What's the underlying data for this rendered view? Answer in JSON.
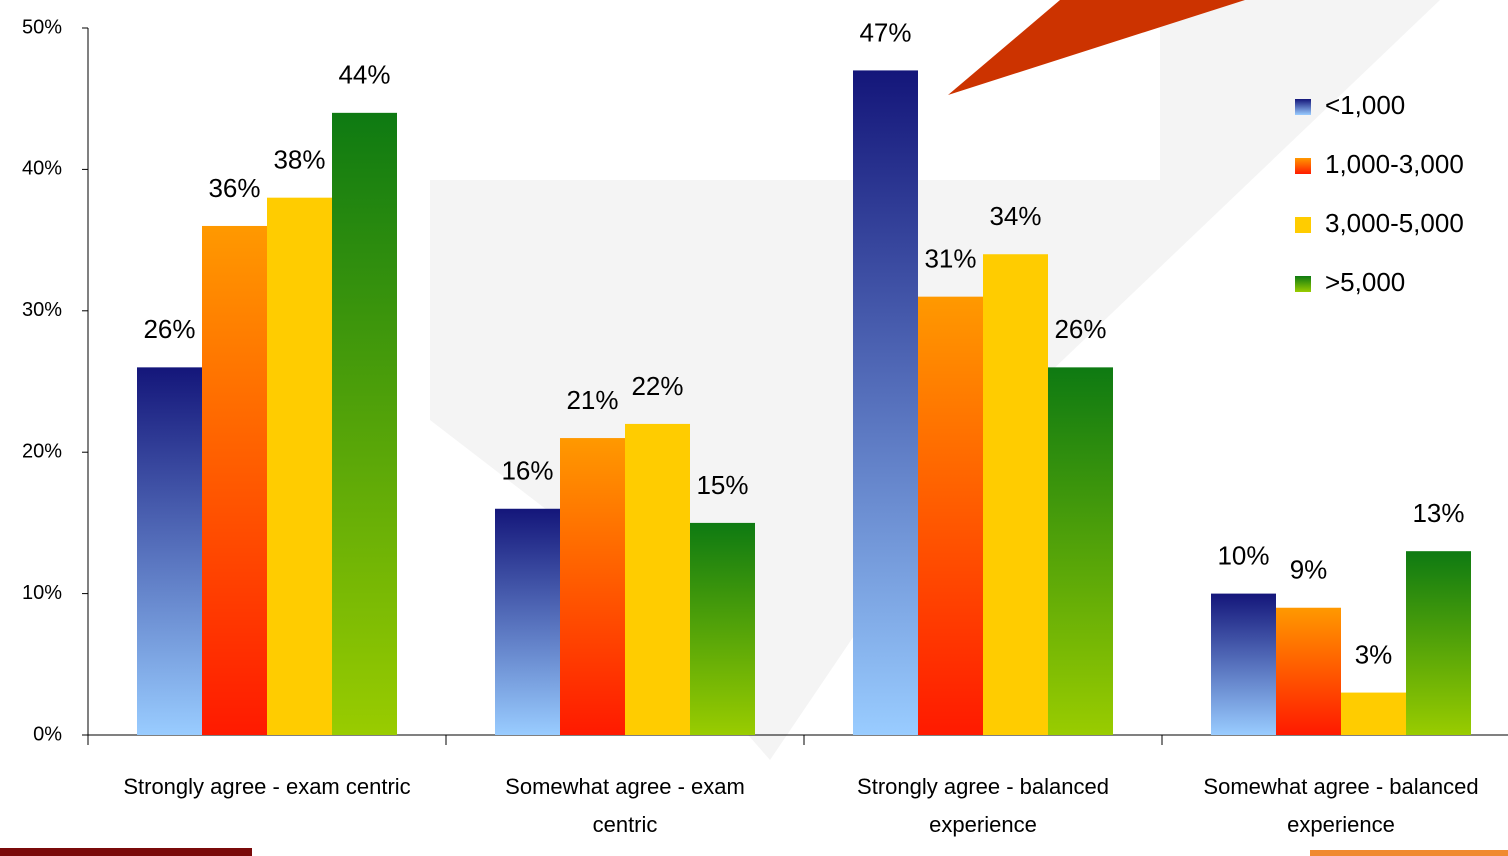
{
  "chart_data": {
    "type": "bar",
    "categories": [
      "Strongly agree - exam centric",
      "Somewhat agree - exam centric",
      "Strongly agree - balanced experience",
      "Somewhat agree - balanced experience"
    ],
    "series": [
      {
        "name": "<1,000",
        "colors": [
          "#14167a",
          "#99ccff"
        ],
        "values": [
          26,
          16,
          47,
          10
        ],
        "value_labels": [
          "26%",
          "16%",
          "47%",
          "10%"
        ]
      },
      {
        "name": "1,000-3,000",
        "colors": [
          "#ff9900",
          "#ff1a00"
        ],
        "values": [
          36,
          21,
          31,
          9
        ],
        "value_labels": [
          "36%",
          "21%",
          "31%",
          "9%"
        ]
      },
      {
        "name": "3,000-5,000",
        "colors": [
          "#ffcc00",
          "#ffcc00"
        ],
        "values": [
          38,
          22,
          34,
          3
        ],
        "value_labels": [
          "38%",
          "22%",
          "34%",
          "3%"
        ]
      },
      {
        "name": ">5,000",
        "colors": [
          "#0e7a12",
          "#99cc00"
        ],
        "values": [
          44,
          15,
          26,
          13
        ],
        "value_labels": [
          "44%",
          "15%",
          "26%",
          "13%"
        ]
      }
    ],
    "ylim": [
      0,
      50
    ],
    "yticks": [
      {
        "value": 0,
        "label": "0%"
      },
      {
        "value": 10,
        "label": "10%"
      },
      {
        "value": 20,
        "label": "20%"
      },
      {
        "value": 30,
        "label": "30%"
      },
      {
        "value": 40,
        "label": "40%"
      },
      {
        "value": 50,
        "label": "50%"
      }
    ],
    "legend": "right"
  }
}
